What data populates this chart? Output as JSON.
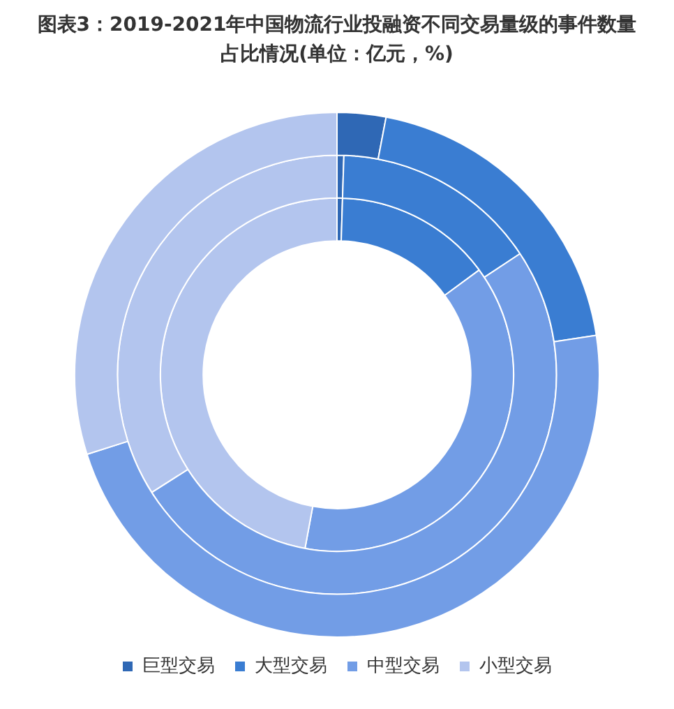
{
  "chart_data": {
    "type": "donut",
    "title": "图表3：2019-2021年中国物流行业投融资不同交易量级的事件数量占比情况(单位：亿元，%)",
    "categories": [
      "巨型交易",
      "大型交易",
      "中型交易",
      "小型交易"
    ],
    "colors": [
      "#2f68b5",
      "#3a7dd2",
      "#729de6",
      "#b3c5ee"
    ],
    "legend": "bottom",
    "series": [
      {
        "values": [
          3.0,
          19.6,
          47.5,
          29.9
        ]
      },
      {
        "values": [
          0.5,
          15.2,
          50.3,
          34.0
        ]
      },
      {
        "values": [
          0.5,
          14.4,
          38.0,
          47.1
        ]
      }
    ]
  }
}
